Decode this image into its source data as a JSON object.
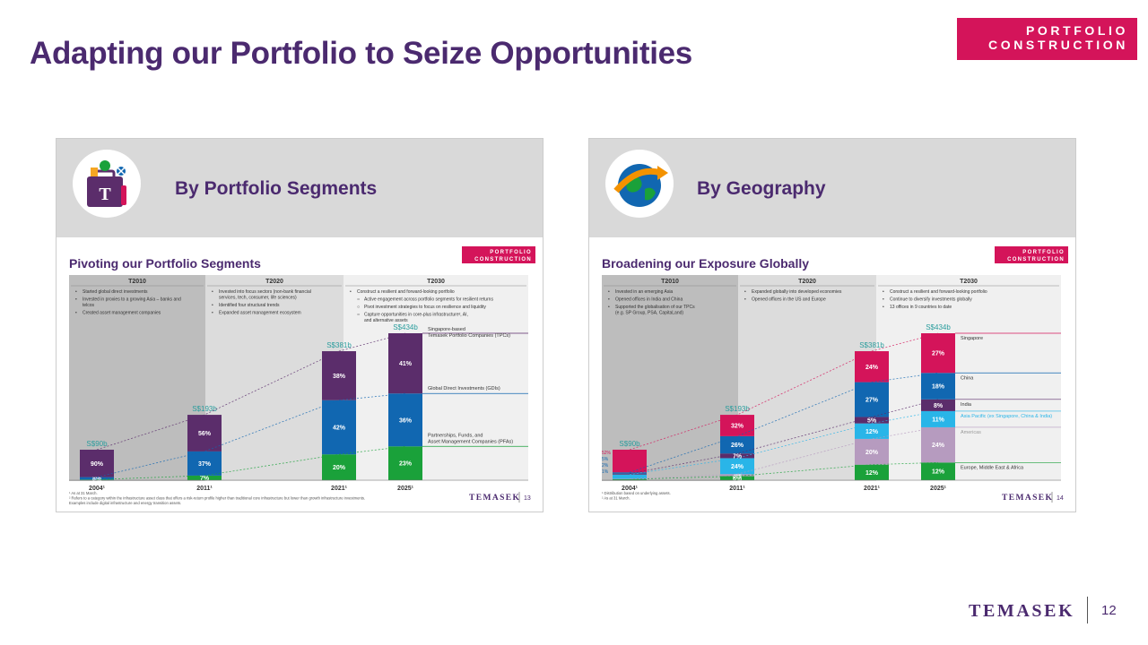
{
  "title": "Adapting our Portfolio to Seize Opportunities",
  "tag": {
    "line1": "PORTFOLIO",
    "line2": "CONSTRUCTION"
  },
  "footer": {
    "logo": "TEMASEK",
    "page": "12"
  },
  "colors": {
    "purple": "#5b2d6b",
    "blue": "#1167b1",
    "green": "#1aa13a",
    "magenta": "#d4145a",
    "sky": "#29b5e8",
    "lilac": "#b69bbf",
    "title": "#4b2a6f"
  },
  "icons": {
    "left": "portfolio-suitcase-icon",
    "right": "globe-arrow-icon"
  },
  "panels": [
    {
      "heading": "By Portfolio Segments",
      "chart_data": {
        "type": "bar",
        "title": "Pivoting our Portfolio Segments",
        "tag": [
          "PORTFOLIO",
          "CONSTRUCTION"
        ],
        "categories": [
          "2004¹",
          "2011¹",
          "2021¹",
          "2025¹"
        ],
        "totals": [
          "S$90b",
          "S$193b",
          "S$381b",
          "S$434b"
        ],
        "total_values": [
          90,
          193,
          381,
          434
        ],
        "series": [
          {
            "name": "Partnerships, Funds, and Asset Management Companies (PFAs)",
            "color": "#1aa13a",
            "values": [
              2,
              7,
              20,
              23
            ],
            "labels": [
              "2%",
              "7%",
              "20%",
              "23%"
            ]
          },
          {
            "name": "Global Direct Investments (GDIs)",
            "color": "#1167b1",
            "values": [
              8,
              37,
              42,
              36
            ],
            "labels": [
              "8%",
              "37%",
              "42%",
              "36%"
            ]
          },
          {
            "name": "Singapore-based Temasek Portfolio Companies (TPCs)",
            "color": "#5b2d6b",
            "values": [
              90,
              56,
              38,
              41
            ],
            "labels": [
              "90%",
              "56%",
              "38%",
              "41%"
            ]
          }
        ],
        "legend": [
          [
            "Singapore-based",
            "Temasek Portfolio Companies (TPCs)"
          ],
          [
            "Global Direct Investments (GDIs)"
          ],
          [
            "Partnerships, Funds, and",
            "Asset Management Companies (PFAs)"
          ]
        ],
        "eras": [
          {
            "label": "T2010",
            "bullets": [
              [
                "Started global direct investments"
              ],
              [
                "Invested in proxies to a growing Asia – banks and",
                "telcos"
              ],
              [
                "Created asset management companies"
              ]
            ]
          },
          {
            "label": "T2020",
            "bullets": [
              [
                "Invested into focus sectors (non-bank financial",
                "services, tech, consumer, life sciences)"
              ],
              [
                "Identified four structural trends"
              ],
              [
                "Expanded asset management ecosystem"
              ]
            ]
          },
          {
            "label": "T2030",
            "bullets": [
              [
                "Construct a resilient and forward-looking portfolio"
              ],
              [
                "Active engagement across portfolio segments for resilient returns"
              ],
              [
                "Pivot investment strategies to focus on resilience and liquidity"
              ],
              [
                "Capture opportunities in core-plus infrastructure², AI,",
                "and alternative assets"
              ]
            ]
          }
        ],
        "footnotes": [
          "¹ As at 31 March.",
          "² Refers to a category within the infrastructure asset class that offers a risk-return profile higher than traditional core infrastructure but lower than growth infrastructure investments.",
          "Examples include digital infrastructure and energy transition assets."
        ],
        "logo": "TEMASEK",
        "page": "13"
      }
    },
    {
      "heading": "By Geography",
      "chart_data": {
        "type": "bar",
        "title": "Broadening our Exposure Globally",
        "tag": [
          "PORTFOLIO",
          "CONSTRUCTION"
        ],
        "categories": [
          "2004¹",
          "2011¹",
          "2021¹",
          "2025¹"
        ],
        "totals": [
          "S$90b",
          "S$193b",
          "S$381b",
          "S$434b"
        ],
        "total_values": [
          90,
          193,
          381,
          434
        ],
        "series": [
          {
            "name": "Europe, Middle East & Africa",
            "color": "#1aa13a",
            "values": [
              2,
              6,
              12,
              12
            ],
            "labels": [
              "",
              "6%",
              "12%",
              "12%"
            ]
          },
          {
            "name": "Americas",
            "color": "#b69bbf",
            "values": [
              1,
              3,
              20,
              24
            ],
            "labels": [
              "",
              "3%",
              "20%",
              "24%"
            ]
          },
          {
            "name": "Asia Pacific (ex Singapore, China & India)",
            "color": "#29b5e8",
            "values": [
              10,
              24,
              12,
              11
            ],
            "labels": [
              "",
              "24%",
              "12%",
              "11%"
            ]
          },
          {
            "name": "India",
            "color": "#5b2d6b",
            "values": [
              2,
              7,
              5,
              8
            ],
            "labels": [
              "",
              "7%",
              "5%",
              "8%"
            ]
          },
          {
            "name": "China",
            "color": "#1167b1",
            "values": [
              3,
              26,
              27,
              18
            ],
            "labels": [
              "",
              "26%",
              "27%",
              "18%"
            ]
          },
          {
            "name": "Singapore",
            "color": "#d4145a",
            "values": [
              52,
              32,
              24,
              27
            ],
            "labels": [
              "",
              "32%",
              "24%",
              "27%"
            ]
          }
        ],
        "left_labels": [
          "52%",
          "5%",
          "2%",
          "1%"
        ],
        "eras": [
          {
            "label": "T2010",
            "bullets": [
              [
                "Invested in an emerging Asia"
              ],
              [
                "Opened offices in India and China"
              ],
              [
                "Supported the globalisation of our TPCs",
                "(e.g. SP Group, PSA, CapitaLand)"
              ]
            ]
          },
          {
            "label": "T2020",
            "bullets": [
              [
                "Expanded globally into developed economies"
              ],
              [
                "Opened offices in the US and Europe"
              ]
            ]
          },
          {
            "label": "T2030",
            "bullets": [
              [
                "Construct a resilient and forward-looking portfolio"
              ],
              [
                "Continue to diversify investments globally"
              ],
              [
                "13 offices in 9 countries to date"
              ]
            ]
          }
        ],
        "footnotes": [
          "¹ Distribution based on underlying assets.",
          "² As at 31 March."
        ],
        "logo": "TEMASEK",
        "page": "14"
      }
    }
  ]
}
